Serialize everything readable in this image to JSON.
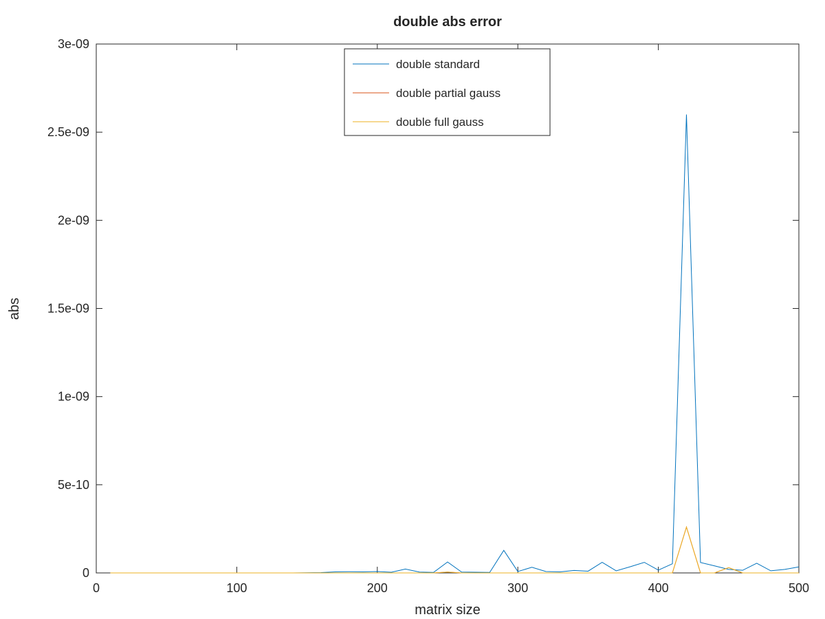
{
  "chart_data": {
    "type": "line",
    "title": "double abs error",
    "xlabel": "matrix size",
    "ylabel": "abs",
    "xlim": [
      0,
      500
    ],
    "ylim": [
      0,
      3e-09
    ],
    "xticks": [
      0,
      100,
      200,
      300,
      400,
      500
    ],
    "xtick_labels": [
      "0",
      "100",
      "200",
      "300",
      "400",
      "500"
    ],
    "yticks": [
      0,
      5e-10,
      1e-09,
      1.5e-09,
      2e-09,
      2.5e-09,
      3e-09
    ],
    "ytick_labels": [
      "0",
      "5e-10",
      "1e-09",
      "1.5e-09",
      "2e-09",
      "2.5e-09",
      "3e-09"
    ],
    "grid": false,
    "legend_position": "top-center",
    "x": [
      10,
      20,
      30,
      40,
      50,
      60,
      70,
      80,
      90,
      100,
      110,
      120,
      130,
      140,
      150,
      160,
      170,
      180,
      190,
      200,
      210,
      220,
      230,
      240,
      250,
      260,
      270,
      280,
      290,
      300,
      310,
      320,
      330,
      340,
      350,
      360,
      370,
      380,
      390,
      400,
      410,
      420,
      430,
      440,
      450,
      460,
      470,
      480,
      490,
      500
    ],
    "series": [
      {
        "name": "double standard",
        "color": "#0072bd",
        "values": [
          0,
          0,
          0,
          0,
          0,
          0,
          0,
          0,
          0,
          0,
          0,
          0,
          0,
          0,
          1e-12,
          2e-12,
          6e-12,
          7e-12,
          6e-12,
          8e-12,
          4e-12,
          2.2e-11,
          5e-12,
          3e-12,
          6.2e-11,
          5e-12,
          4e-12,
          3e-12,
          1.28e-10,
          8e-12,
          3.2e-11,
          8e-12,
          6e-12,
          1.4e-11,
          1e-11,
          6e-11,
          1.2e-11,
          3.5e-11,
          6e-11,
          1.6e-11,
          5.2e-11,
          2.6e-09,
          5.9e-11,
          4e-11,
          2e-11,
          1.5e-11,
          5.5e-11,
          1.2e-11,
          2e-11,
          3.4e-11
        ]
      },
      {
        "name": "double partial gauss",
        "color": "#d95319",
        "values": [
          0,
          0,
          0,
          0,
          0,
          0,
          0,
          0,
          0,
          0,
          0,
          0,
          0,
          0,
          0,
          0,
          0,
          0,
          0,
          0,
          0,
          0,
          0,
          0,
          5e-12,
          0,
          0,
          0,
          0,
          0,
          0,
          0,
          0,
          0,
          0,
          0,
          0,
          0,
          0,
          0,
          0,
          2.6e-10,
          0,
          0,
          3e-11,
          0,
          0,
          0,
          0,
          0
        ]
      },
      {
        "name": "double full gauss",
        "color": "#edb120",
        "values": [
          0,
          0,
          0,
          0,
          0,
          0,
          0,
          0,
          0,
          0,
          0,
          0,
          0,
          0,
          0,
          0,
          0,
          0,
          0,
          0,
          0,
          0,
          0,
          0,
          5e-12,
          0,
          0,
          0,
          0,
          0,
          0,
          0,
          0,
          0,
          0,
          0,
          0,
          0,
          0,
          0,
          0,
          2.6e-10,
          0,
          0,
          3e-11,
          0,
          0,
          0,
          0,
          0
        ]
      }
    ]
  }
}
